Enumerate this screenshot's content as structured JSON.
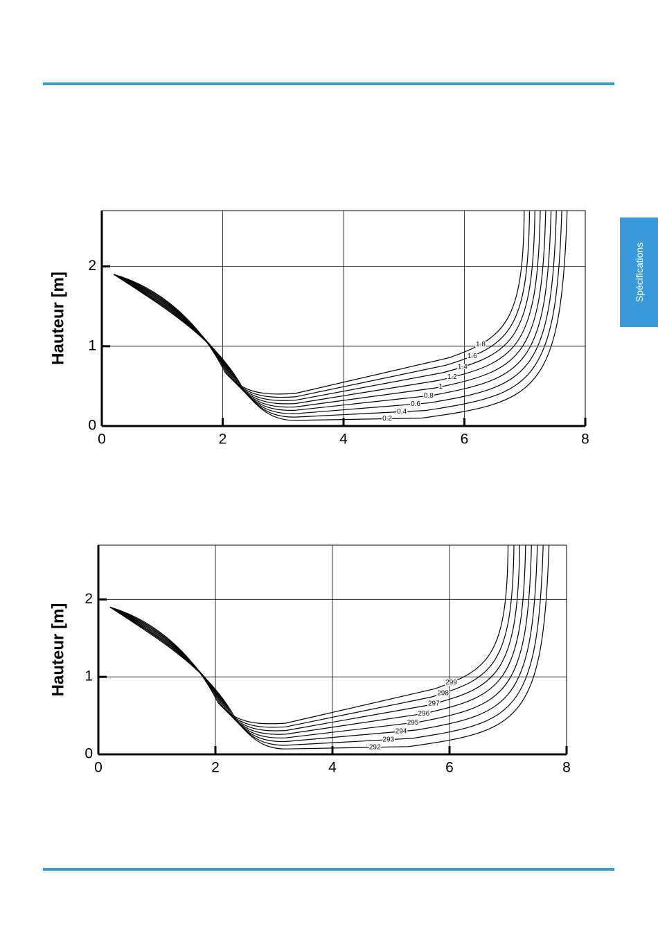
{
  "side_tab": "Spécifications",
  "chart_data": [
    {
      "type": "contour",
      "ylabel": "Hauteur [m]",
      "xlim": [
        0,
        8
      ],
      "ylim": [
        0,
        2.7
      ],
      "xticks": [
        0,
        2,
        4,
        6,
        8
      ],
      "yticks": [
        0,
        1,
        2
      ],
      "grid": true,
      "color": "#000000",
      "levels": [
        0.2,
        0.4,
        0.6,
        0.8,
        1,
        1.2,
        1.4,
        1.6,
        1.8
      ]
    },
    {
      "type": "contour",
      "ylabel": "Hauteur [m]",
      "xlim": [
        0,
        8
      ],
      "ylim": [
        0,
        2.7
      ],
      "xticks": [
        0,
        2,
        4,
        6,
        8
      ],
      "yticks": [
        0,
        1,
        2
      ],
      "grid": true,
      "color": "#000000",
      "levels": [
        292,
        293,
        294,
        295,
        296,
        297,
        298,
        299
      ]
    }
  ]
}
